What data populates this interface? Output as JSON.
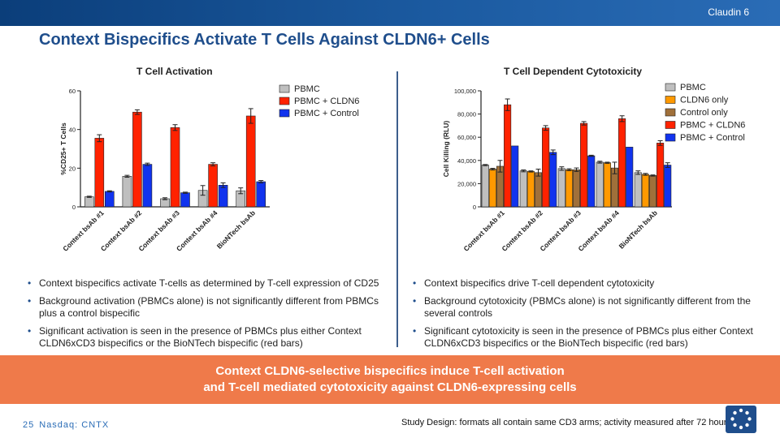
{
  "header": {
    "tag": "Claudin 6"
  },
  "title": "Context Bispecifics Activate T Cells Against CLDN6+ Cells",
  "colors": {
    "brand_blue": "#1f4e8c",
    "banner": "#ef7a4a",
    "gray": "#bfbfbf",
    "red": "#ff2200",
    "blue": "#1133ee",
    "orange": "#ff9900",
    "brown": "#a0703a"
  },
  "chart_data": [
    {
      "type": "bar",
      "title": "T Cell Activation",
      "ylabel": "%CD25+ T Cells",
      "ylim": [
        0,
        60
      ],
      "yticks": [
        "0",
        "20",
        "40",
        "60"
      ],
      "categories": [
        "Context bsAb #1",
        "Context bsAb #2",
        "Context bsAb #3",
        "Context bsAb #4",
        "BioNTech bsAb"
      ],
      "series": [
        {
          "name": "PBMC",
          "color": "#bfbfbf",
          "values": [
            5.2,
            15.8,
            4.2,
            8.5,
            8.3
          ],
          "errors": [
            0.3,
            0.5,
            0.5,
            2.5,
            1.5
          ]
        },
        {
          "name": "PBMC + CLDN6",
          "color": "#ff2200",
          "values": [
            35.5,
            49,
            41,
            22,
            47
          ],
          "errors": [
            1.8,
            1.2,
            1.5,
            0.8,
            3.8
          ]
        },
        {
          "name": "PBMC + Control",
          "color": "#1133ee",
          "values": [
            8,
            22,
            7.3,
            11.2,
            13
          ],
          "errors": [
            0.3,
            0.6,
            0.3,
            1.2,
            0.6
          ]
        }
      ],
      "legend_position": "top-right"
    },
    {
      "type": "bar",
      "title": "T Cell Dependent Cytotoxicity",
      "ylabel": "Cell Killing (RLU)",
      "ylim": [
        0,
        100000
      ],
      "yticks": [
        "0",
        "20,000",
        "40,000",
        "60,000",
        "80,000",
        "100,000"
      ],
      "categories": [
        "Context bsAb #1",
        "Context bsAb #2",
        "Context bsAb #3",
        "Context bsAb #4",
        "BioNTech bsAb"
      ],
      "series": [
        {
          "name": "PBMC",
          "color": "#bfbfbf",
          "values": [
            36000,
            31000,
            33000,
            38500,
            29500
          ],
          "errors": [
            500,
            800,
            1500,
            800,
            1500
          ]
        },
        {
          "name": "CLDN6 only",
          "color": "#ff9900",
          "values": [
            32500,
            30500,
            32000,
            38000,
            28000
          ],
          "errors": [
            700,
            500,
            800,
            500,
            800
          ]
        },
        {
          "name": "Control only",
          "color": "#a0703a",
          "values": [
            35000,
            29500,
            32000,
            33500,
            27000
          ],
          "errors": [
            5000,
            3000,
            1500,
            5000,
            500
          ]
        },
        {
          "name": "PBMC + CLDN6",
          "color": "#ff2200",
          "values": [
            88000,
            68000,
            72000,
            76000,
            55000
          ],
          "errors": [
            5000,
            2000,
            1500,
            2500,
            2000
          ]
        },
        {
          "name": "PBMC + Control",
          "color": "#1133ee",
          "values": [
            52500,
            47000,
            44000,
            51500,
            36000
          ],
          "errors": [
            0,
            2000,
            500,
            0,
            2000
          ]
        }
      ],
      "legend_position": "top-right"
    }
  ],
  "left_bullets": [
    "Context bispecifics activate T-cells as determined by T-cell expression of CD25",
    "Background activation (PBMCs alone) is not significantly different from PBMCs plus a control bispecific",
    "Significant activation is seen in the presence of PBMCs plus either Context CLDN6xCD3 bispecifics or the BioNTech bispecific (red bars)"
  ],
  "right_bullets": [
    "Context bispecifics drive T-cell dependent cytotoxicity",
    "Background cytotoxicity (PBMCs alone) is not significantly different from the several controls",
    "Significant cytotoxicity is seen in the presence of PBMCs plus either Context CLDN6xCD3 bispecifics or the BioNTech bispecific (red bars)"
  ],
  "banner": {
    "line1": "Context CLDN6-selective bispecifics induce T-cell activation",
    "line2": "and T-cell mediated cytotoxicity against CLDN6-expressing cells"
  },
  "footer": {
    "page": "25",
    "ticker": "Nasdaq: CNTX"
  },
  "footnote": "Study Design: formats all contain same CD3 arms; activity measured after 72 hours"
}
